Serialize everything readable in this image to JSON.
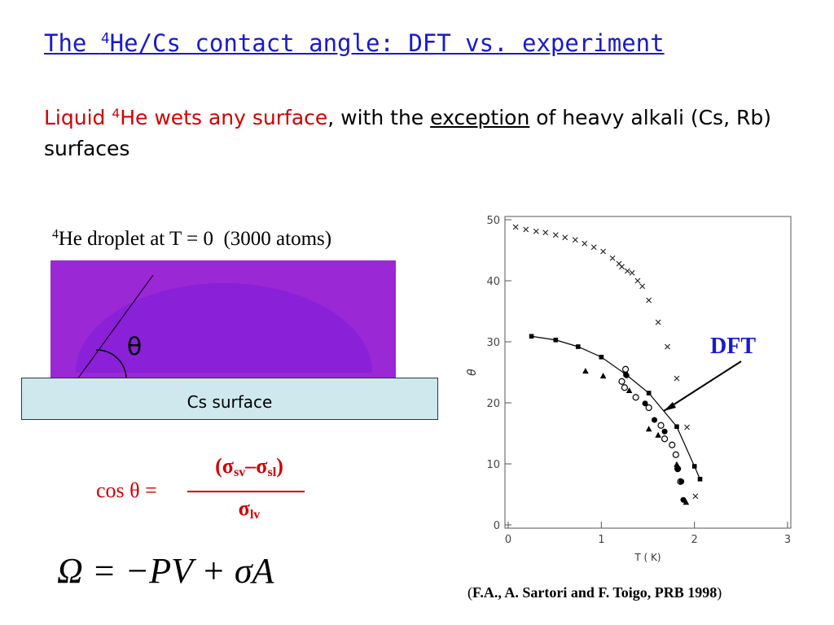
{
  "title": [
    "The ",
    "4",
    "He/Cs contact angle: DFT vs. experiment"
  ],
  "subtitle": [
    "Liquid ",
    "4",
    "He wets any surface",
    ", with the ",
    "exception",
    " of heavy alkali (Cs, Rb) surfaces"
  ],
  "image_caption": [
    "4",
    "He droplet at T = 0  (3000 atoms)"
  ],
  "angle_label": "θ",
  "surface_label": "Cs surface",
  "formula": {
    "lhs": "cos θ =",
    "numerator": [
      "(σ",
      "sv",
      "–σ",
      "sl",
      ")"
    ],
    "denominator": [
      "σ",
      "lv"
    ]
  },
  "equation": "Ω = −PV + σA",
  "citation": [
    "(",
    "F.A., A. Sartori and F. Toigo, PRB 1998",
    ")"
  ],
  "chart_data": {
    "type": "scatter",
    "annotation": "DFT",
    "xlabel": "T ( K)",
    "ylabel": "θ",
    "xlim": [
      0,
      3
    ],
    "xticks": [
      0,
      1,
      2,
      3
    ],
    "ylim": [
      0,
      50
    ],
    "yticks": [
      0,
      10,
      20,
      30,
      40,
      50
    ],
    "series": [
      {
        "marker": "x",
        "color": "#222222",
        "x": [
          0.08,
          0.19,
          0.3,
          0.4,
          0.51,
          0.61,
          0.72,
          0.82,
          0.92,
          1.02,
          1.12,
          1.19,
          1.22,
          1.28,
          1.33,
          1.39,
          1.44,
          1.51,
          1.61,
          1.71,
          1.81,
          1.92,
          2.01
        ],
        "values": [
          48.8,
          48.4,
          48.1,
          47.9,
          47.5,
          47.1,
          46.7,
          46.1,
          45.5,
          44.8,
          43.7,
          42.8,
          42.3,
          41.6,
          41.3,
          40.0,
          39.1,
          36.8,
          33.2,
          29.2,
          24.0,
          16.0,
          4.7
        ]
      },
      {
        "marker": "square",
        "line": true,
        "color": "#000000",
        "x": [
          0.25,
          0.51,
          0.75,
          1.0,
          1.26,
          1.51,
          1.81,
          2.0,
          2.06
        ],
        "values": [
          30.9,
          30.3,
          29.2,
          27.5,
          24.7,
          21.6,
          16.1,
          9.6,
          7.5
        ]
      },
      {
        "marker": "circle-open",
        "color": "#000000",
        "x": [
          1.26,
          1.22,
          1.25,
          1.37,
          1.51,
          1.64,
          1.68,
          1.76,
          1.8,
          1.82,
          1.85
        ],
        "values": [
          25.5,
          23.5,
          22.5,
          20.9,
          19.2,
          16.3,
          14.1,
          13.1,
          11.5,
          9.2,
          7.1
        ]
      },
      {
        "marker": "circle",
        "color": "#000000",
        "x": [
          1.27,
          1.47,
          1.57,
          1.68,
          1.82,
          1.86,
          1.88
        ],
        "values": [
          24.5,
          19.9,
          17.2,
          15.3,
          9.1,
          7.1,
          4.1
        ]
      },
      {
        "marker": "triangle",
        "color": "#000000",
        "x": [
          0.83,
          1.02,
          1.3,
          1.51,
          1.61,
          1.81,
          1.91
        ],
        "values": [
          25.2,
          24.4,
          22.0,
          15.7,
          14.7,
          9.9,
          3.7
        ]
      }
    ]
  }
}
